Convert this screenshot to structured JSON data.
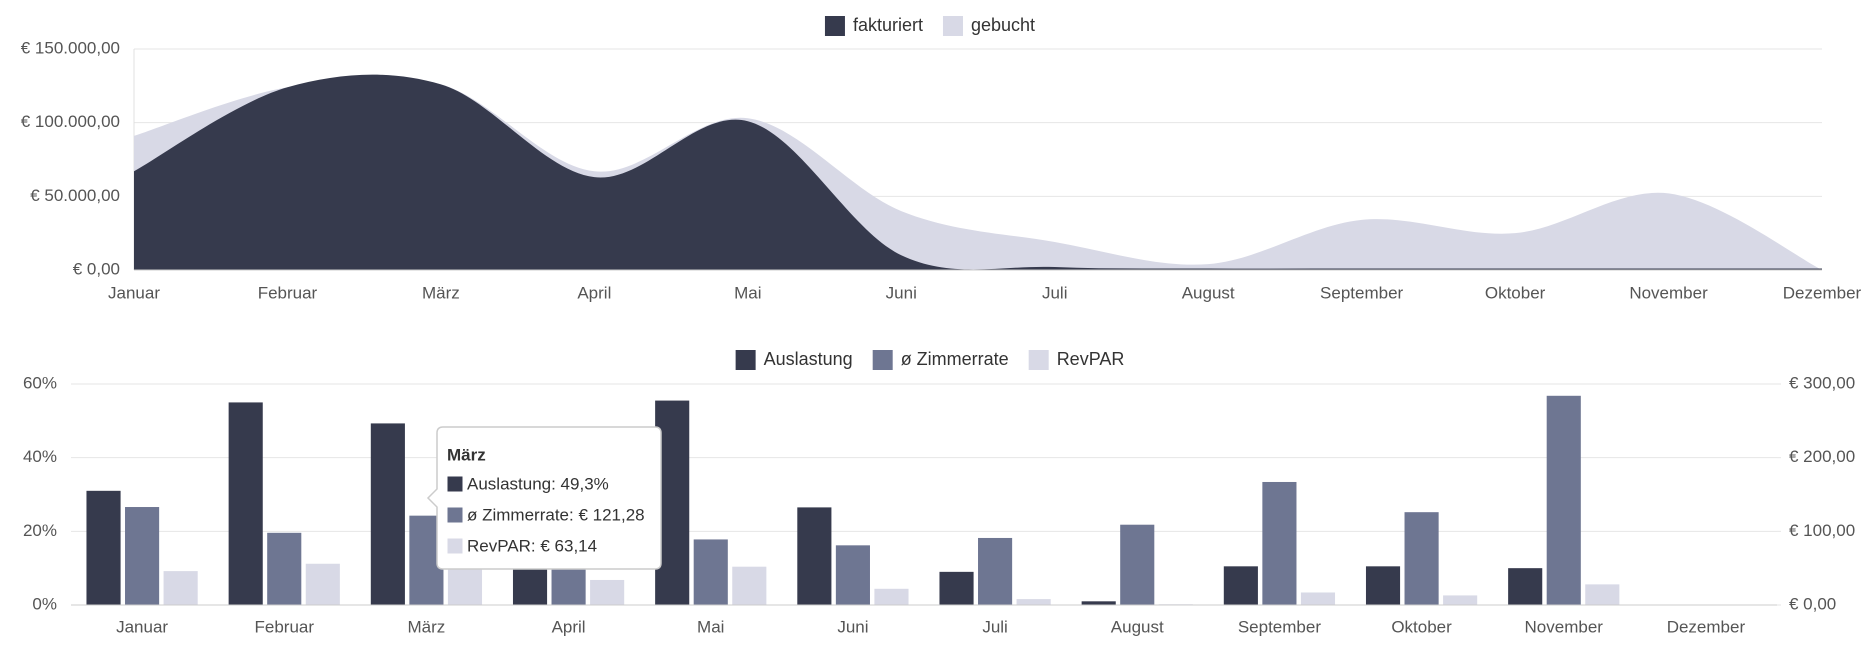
{
  "chart_data": [
    {
      "type": "area",
      "categories": [
        "Januar",
        "Februar",
        "März",
        "April",
        "Mai",
        "Juni",
        "Juli",
        "August",
        "September",
        "Oktober",
        "November",
        "Dezember"
      ],
      "series": [
        {
          "name": "fakturiert",
          "color": "#363a4d",
          "values": [
            67000,
            124000,
            126000,
            63000,
            101000,
            10000,
            2000,
            1000,
            1000,
            1000,
            1000,
            1000
          ]
        },
        {
          "name": "gebucht",
          "color": "#d8d9e6",
          "values": [
            91000,
            124000,
            126000,
            67000,
            103000,
            40000,
            19000,
            4000,
            34000,
            25000,
            52000,
            0
          ]
        }
      ],
      "ylim": [
        0,
        150000
      ],
      "yticks": [
        {
          "value": 0,
          "label": "€ 0,00"
        },
        {
          "value": 50000,
          "label": "€ 50.000,00"
        },
        {
          "value": 100000,
          "label": "€ 100.000,00"
        },
        {
          "value": 150000,
          "label": "€ 150.000,00"
        }
      ],
      "grid": true,
      "legend": "top"
    },
    {
      "type": "bar",
      "categories": [
        "Januar",
        "Februar",
        "März",
        "April",
        "Mai",
        "Juni",
        "Juli",
        "August",
        "September",
        "Oktober",
        "November",
        "Dezember"
      ],
      "series": [
        {
          "name": "Auslastung",
          "color": "#363a4d",
          "values": [
            31,
            55,
            49.3,
            10,
            55.5,
            26.5,
            9,
            1,
            10.5,
            10.5,
            10,
            0
          ]
        },
        {
          "name": "ø Zimmerrate",
          "color": "#6e7692",
          "axis": "y2",
          "values": [
            133,
            98,
            121.28,
            90,
            89,
            81,
            91,
            109,
            167,
            126,
            284,
            0
          ]
        },
        {
          "name": "RevPAR",
          "color": "#d8d9e6",
          "axis": "y2",
          "values": [
            46,
            56,
            63.14,
            34,
            52,
            22,
            8,
            1,
            17,
            13,
            28,
            0
          ]
        }
      ],
      "ylim": [
        0,
        60
      ],
      "yticks": [
        {
          "value": 0,
          "label": "0%"
        },
        {
          "value": 20,
          "label": "20%"
        },
        {
          "value": 40,
          "label": "40%"
        },
        {
          "value": 60,
          "label": "60%"
        }
      ],
      "y2lim": [
        0,
        300
      ],
      "y2ticks": [
        {
          "value": 0,
          "label": "€ 0,00"
        },
        {
          "value": 100,
          "label": "€ 100,00"
        },
        {
          "value": 200,
          "label": "€ 200,00"
        },
        {
          "value": 300,
          "label": "€ 300,00"
        }
      ],
      "grid": true,
      "legend": "top",
      "tooltip": {
        "title": "März",
        "lines": [
          "Auslastung: 49,3%",
          "ø Zimmerrate: € 121,28",
          "RevPAR: € 63,14"
        ]
      }
    }
  ]
}
